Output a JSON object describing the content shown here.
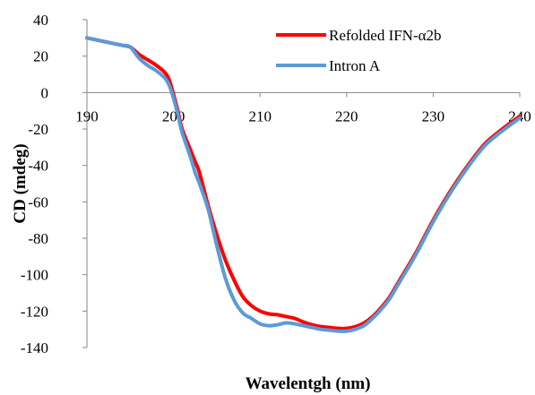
{
  "chart_data": {
    "type": "line",
    "xlabel": "Wavelentgh (nm)",
    "ylabel": "CD (mdeg)",
    "xlim": [
      190,
      240
    ],
    "ylim": [
      -140,
      40
    ],
    "xticks": [
      190,
      200,
      210,
      220,
      230,
      240
    ],
    "yticks": [
      40,
      20,
      0,
      -20,
      -40,
      -60,
      -80,
      -100,
      -120,
      -140
    ],
    "grid": false,
    "legend_position": "top-right",
    "series": [
      {
        "name": "Refolded IFN-α2b",
        "color": "#ff0000",
        "x": [
          190,
          192,
          194,
          195,
          196,
          197,
          198,
          199,
          199.5,
          200,
          200.5,
          201,
          202,
          202.5,
          203,
          204,
          205,
          206,
          207,
          208,
          209,
          210,
          211,
          212,
          213,
          214,
          215,
          216,
          217,
          218,
          219,
          220,
          221,
          222,
          223,
          224,
          225,
          226,
          228,
          230,
          232,
          234,
          236,
          238,
          240
        ],
        "y": [
          30,
          28,
          26,
          25,
          21,
          18,
          15,
          11,
          7,
          -1,
          -10,
          -20,
          -32,
          -38,
          -44,
          -62,
          -78,
          -92,
          -103,
          -112,
          -117,
          -120,
          -121.5,
          -122,
          -123,
          -124,
          -126,
          -127.5,
          -128.5,
          -129,
          -129.5,
          -129.5,
          -128.5,
          -126.5,
          -123,
          -118,
          -112,
          -104,
          -88,
          -70,
          -54,
          -40,
          -28,
          -20,
          -13
        ]
      },
      {
        "name": "Intron A",
        "color": "#5b9bd5",
        "x": [
          190,
          192,
          194,
          195,
          196,
          197,
          198,
          199,
          199.5,
          200,
          200.5,
          201,
          202,
          202.5,
          203,
          204,
          205,
          206,
          207,
          208,
          209,
          210,
          211,
          212,
          213,
          214,
          215,
          216,
          217,
          218,
          219,
          220,
          221,
          222,
          223,
          224,
          225,
          226,
          228,
          230,
          232,
          234,
          236,
          238,
          240
        ],
        "y": [
          30,
          28,
          26,
          25,
          19,
          15,
          12,
          8,
          4,
          -3,
          -12,
          -22,
          -36,
          -44,
          -50,
          -64,
          -84,
          -102,
          -114,
          -121,
          -124,
          -127,
          -128,
          -127.5,
          -126.5,
          -127,
          -128,
          -129,
          -130,
          -130.5,
          -131,
          -131,
          -130,
          -128,
          -124,
          -119,
          -113,
          -105,
          -89,
          -71,
          -55,
          -41,
          -29,
          -21,
          -14
        ]
      }
    ]
  }
}
